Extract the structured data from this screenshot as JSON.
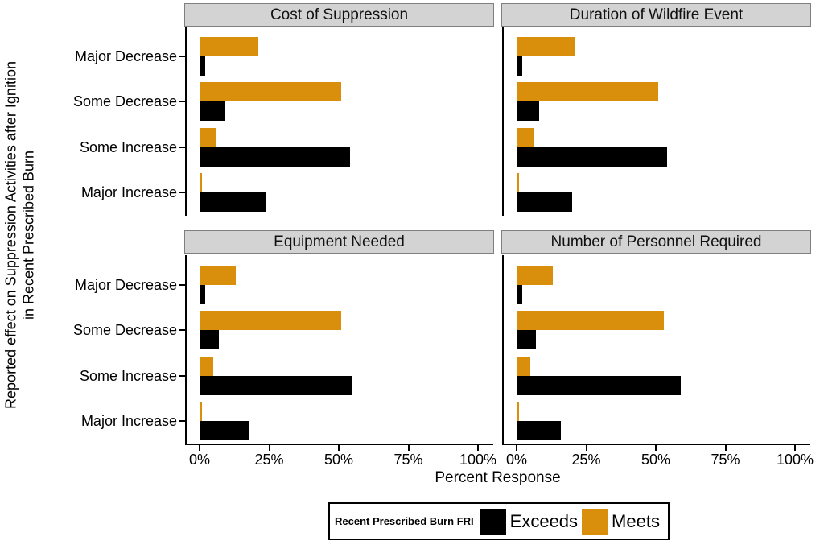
{
  "figure": {
    "y_axis_label_line1": "Reported effect on Suppression Activities after Ignition",
    "y_axis_label_line2": "in Recent Prescribed Burn",
    "x_axis_label": "Percent Response"
  },
  "legend": {
    "title": "Recent Prescribed Burn FRI",
    "entries": [
      {
        "label": "Exceeds",
        "color": "#000000"
      },
      {
        "label": "Meets",
        "color": "#D98E0C"
      }
    ]
  },
  "colors": {
    "exceeds": "#000000",
    "meets": "#D98E0C",
    "strip_background": "#D3D3D3",
    "strip_border": "#7F7F7F"
  },
  "chart_data": {
    "type": "bar",
    "orientation": "horizontal",
    "title": "",
    "xlabel": "Percent Response",
    "ylabel": "Reported effect on Suppression Activities after Ignition in Recent Prescribed Burn",
    "xlim": [
      0,
      100
    ],
    "x_ticks": [
      0,
      25,
      50,
      75,
      100
    ],
    "x_tick_labels": [
      "0%",
      "25%",
      "50%",
      "75%",
      "100%"
    ],
    "categories": [
      "Major Decrease",
      "Some Decrease",
      "Some Increase",
      "Major Increase"
    ],
    "series_order_top_to_bottom": [
      "Meets",
      "Exceeds"
    ],
    "legend_position": "bottom",
    "grid": false,
    "facets": [
      {
        "title": "Cost of Suppression",
        "series": [
          {
            "name": "Meets",
            "values": [
              21,
              51,
              6,
              1
            ]
          },
          {
            "name": "Exceeds",
            "values": [
              2,
              9,
              54,
              24
            ]
          }
        ]
      },
      {
        "title": "Duration of Wildfire Event",
        "series": [
          {
            "name": "Meets",
            "values": [
              21,
              51,
              6,
              1
            ]
          },
          {
            "name": "Exceeds",
            "values": [
              2,
              8,
              54,
              20
            ]
          }
        ]
      },
      {
        "title": "Equipment Needed",
        "series": [
          {
            "name": "Meets",
            "values": [
              13,
              51,
              5,
              1
            ]
          },
          {
            "name": "Exceeds",
            "values": [
              2,
              7,
              55,
              18
            ]
          }
        ]
      },
      {
        "title": "Number of Personnel Required",
        "series": [
          {
            "name": "Meets",
            "values": [
              13,
              53,
              5,
              1
            ]
          },
          {
            "name": "Exceeds",
            "values": [
              2,
              7,
              59,
              16
            ]
          }
        ]
      }
    ]
  }
}
